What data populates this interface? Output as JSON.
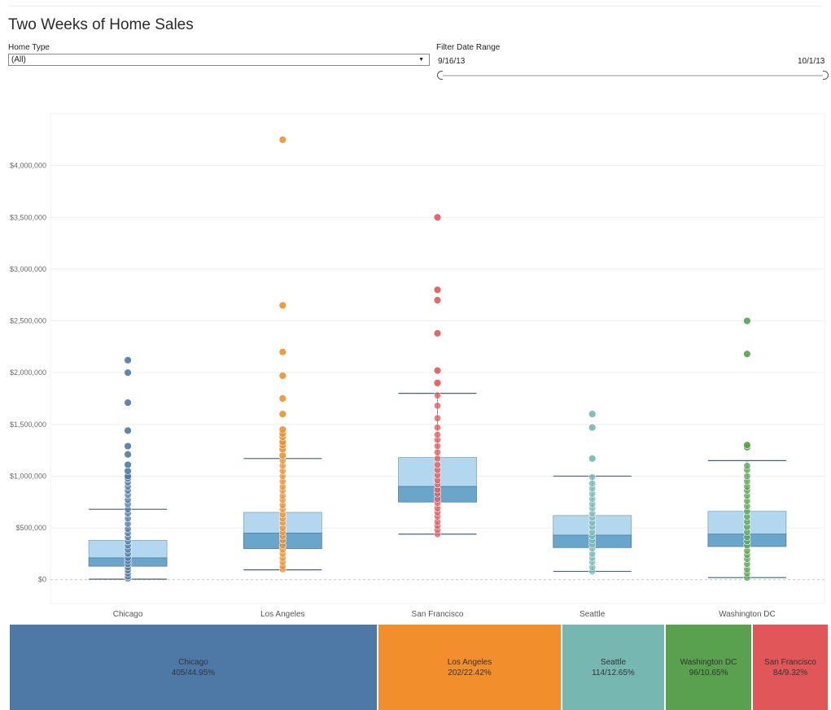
{
  "title": "Two Weeks of Home Sales",
  "filters": {
    "home_type_label": "Home Type",
    "home_type_value": "(All)",
    "date_range_label": "Filter Date Range",
    "date_start": "9/16/13",
    "date_end": "10/1/13"
  },
  "chart_data": {
    "type": "scatter",
    "subtype": "box-plot-with-points",
    "title": "",
    "xlabel": "",
    "ylabel": "",
    "categories": [
      "Chicago",
      "Los Angeles",
      "San Francisco",
      "Seattle",
      "Washington DC"
    ],
    "y_ticks": [
      "$0",
      "$500,000",
      "$1,000,000",
      "$1,500,000",
      "$2,000,000",
      "$2,500,000",
      "$3,000,000",
      "$3,500,000",
      "$4,000,000"
    ],
    "ylim": [
      -230000,
      4500000
    ],
    "grid": true,
    "series": [
      {
        "category": "Chicago",
        "color": "#4e79a7",
        "box": {
          "whisker_low": 5000,
          "q1": 130000,
          "median": 210000,
          "q3": 380000,
          "whisker_high": 680000
        },
        "outliers": [
          980000,
          1000000,
          1050000,
          1110000,
          1210000,
          1290000,
          1440000,
          1710000,
          2000000,
          2120000
        ],
        "points": [
          10000,
          30000,
          60000,
          90000,
          120000,
          150000,
          180000,
          210000,
          250000,
          290000,
          330000,
          370000,
          410000,
          450000,
          490000,
          540000,
          590000,
          640000,
          680000,
          730000,
          770000,
          820000,
          860000,
          900000,
          940000
        ]
      },
      {
        "category": "Los Angeles",
        "color": "#f28e2b",
        "box": {
          "whisker_low": 95000,
          "q1": 300000,
          "median": 450000,
          "q3": 650000,
          "whisker_high": 1170000
        },
        "outliers": [
          1200000,
          1260000,
          1300000,
          1330000,
          1380000,
          1410000,
          1450000,
          1600000,
          1750000,
          1970000,
          2200000,
          2650000,
          4250000
        ],
        "points": [
          100000,
          130000,
          170000,
          210000,
          250000,
          290000,
          330000,
          380000,
          420000,
          460000,
          500000,
          550000,
          590000,
          630000,
          680000,
          720000,
          770000,
          810000,
          860000,
          900000,
          950000,
          1000000,
          1050000,
          1100000,
          1150000
        ]
      },
      {
        "category": "San Francisco",
        "color": "#e15759",
        "box": {
          "whisker_low": 440000,
          "q1": 750000,
          "median": 900000,
          "q3": 1180000,
          "whisker_high": 1800000
        },
        "outliers": [
          1900000,
          2020000,
          2380000,
          2700000,
          2800000,
          3500000
        ],
        "points": [
          440000,
          480000,
          520000,
          560000,
          610000,
          650000,
          690000,
          740000,
          780000,
          830000,
          870000,
          920000,
          960000,
          1010000,
          1060000,
          1110000,
          1170000,
          1230000,
          1290000,
          1350000,
          1400000,
          1470000,
          1560000,
          1680000,
          1780000
        ]
      },
      {
        "category": "Seattle",
        "color": "#76b7b2",
        "box": {
          "whisker_low": 80000,
          "q1": 310000,
          "median": 430000,
          "q3": 620000,
          "whisker_high": 1000000
        },
        "outliers": [
          1170000,
          1470000,
          1600000
        ],
        "points": [
          80000,
          120000,
          170000,
          210000,
          250000,
          300000,
          340000,
          380000,
          420000,
          460000,
          510000,
          550000,
          600000,
          640000,
          690000,
          730000,
          780000,
          830000,
          880000,
          930000,
          990000
        ]
      },
      {
        "category": "Washington DC",
        "color": "#59a14f",
        "box": {
          "whisker_low": 20000,
          "q1": 320000,
          "median": 440000,
          "q3": 660000,
          "whisker_high": 1150000
        },
        "outliers": [
          1280000,
          1300000,
          2180000,
          2500000
        ],
        "points": [
          20000,
          60000,
          100000,
          150000,
          200000,
          240000,
          280000,
          330000,
          370000,
          410000,
          460000,
          510000,
          560000,
          610000,
          660000,
          710000,
          760000,
          810000,
          860000,
          900000,
          950000,
          1000000,
          1060000,
          1100000
        ]
      }
    ]
  },
  "treemap": [
    {
      "city": "Chicago",
      "value": "405/44.95%",
      "share": 0.4495,
      "color": "#4e79a7"
    },
    {
      "city": "Los Angeles",
      "value": "202/22.42%",
      "share": 0.2242,
      "color": "#f28e2b"
    },
    {
      "city": "Seattle",
      "value": "114/12.65%",
      "share": 0.1265,
      "color": "#76b7b2"
    },
    {
      "city": "Washington DC",
      "value": "96/10.65%",
      "share": 0.1065,
      "color": "#59a14f"
    },
    {
      "city": "San Francisco",
      "value": "84/9.32%",
      "share": 0.0932,
      "color": "#e15759"
    }
  ]
}
